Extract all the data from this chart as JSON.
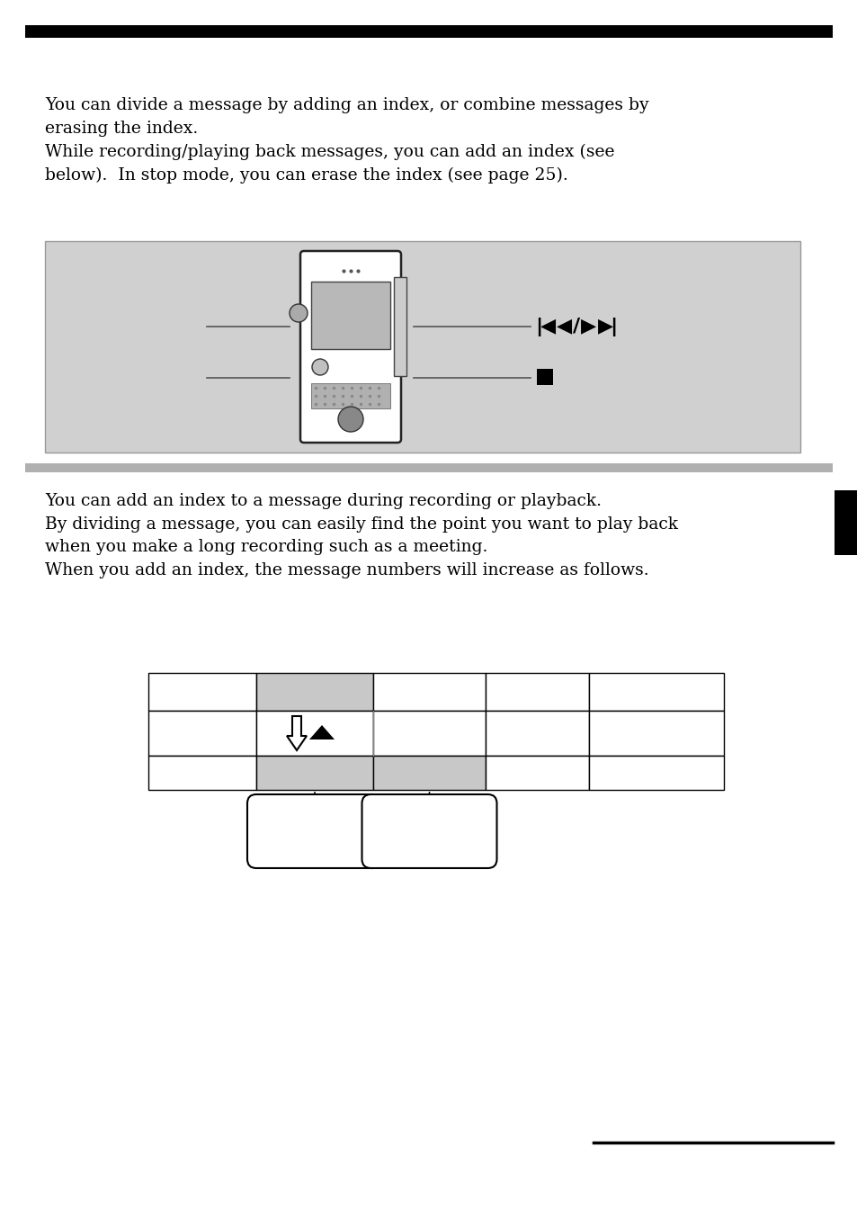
{
  "bg_color": "#ffffff",
  "top_bar_color": "#000000",
  "right_tab_color": "#000000",
  "gray_bar_color": "#b0b0b0",
  "device_box_color": "#d0d0d0",
  "line_color": "#555555",
  "black": "#000000",
  "white": "#ffffff",
  "cell_gray": "#c8c8c8",
  "para1": "You can divide a message by adding an index, or combine messages by\nerasing the index.\nWhile recording/playing back messages, you can add an index (see\nbelow).  In stop mode, you can erase the index (see page 25).",
  "para2": "You can add an index to a message during recording or playback.\nBy dividing a message, you can easily find the point you want to play back\nwhen you make a long recording such as a meeting.\nWhen you add an index, the message numbers will increase as follows.",
  "fontsize": 13.5
}
